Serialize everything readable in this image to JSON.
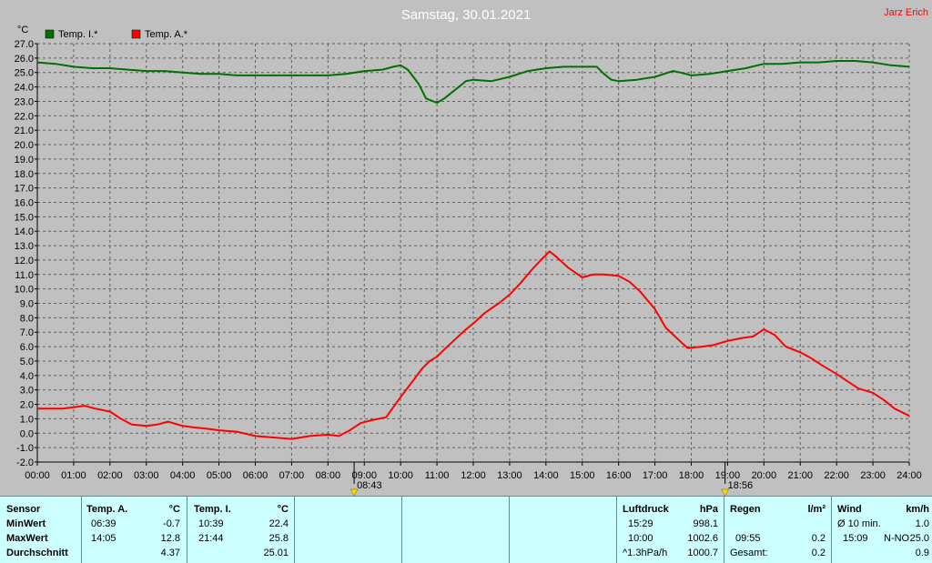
{
  "header": {
    "title": "Samstag, 30.01.2021",
    "author": "Jarz Erich"
  },
  "chart_data": {
    "type": "line",
    "ylabel": "°C",
    "ylim": [
      -2.0,
      27.0
    ],
    "yticks": [
      "-2.0",
      "-1.0",
      "0.0",
      "1.0",
      "2.0",
      "3.0",
      "4.0",
      "5.0",
      "6.0",
      "7.0",
      "8.0",
      "9.0",
      "10.0",
      "11.0",
      "12.0",
      "13.0",
      "14.0",
      "15.0",
      "16.0",
      "17.0",
      "18.0",
      "19.0",
      "20.0",
      "21.0",
      "22.0",
      "23.0",
      "24.0",
      "25.0",
      "26.0",
      "27.0"
    ],
    "xlim": [
      0,
      24
    ],
    "xticks": [
      "00:00",
      "01:00",
      "02:00",
      "03:00",
      "04:00",
      "05:00",
      "06:00",
      "07:00",
      "08:00",
      "09:00",
      "10:00",
      "11:00",
      "12:00",
      "13:00",
      "14:00",
      "15:00",
      "16:00",
      "17:00",
      "18:00",
      "19:00",
      "20:00",
      "21:00",
      "22:00",
      "23:00",
      "24:00"
    ],
    "grid": true,
    "legend": "top-left",
    "markers": [
      {
        "label": "08:43",
        "x": 8.72,
        "icon": "sunrise-icon"
      },
      {
        "label": "18:56",
        "x": 18.93,
        "icon": "sunset-icon"
      }
    ],
    "series": [
      {
        "name": "Temp. I.*",
        "color": "#007000",
        "x": [
          0,
          0.5,
          1,
          1.5,
          2,
          2.5,
          3,
          3.5,
          4,
          4.5,
          5,
          5.5,
          6,
          6.5,
          7,
          7.5,
          8,
          8.5,
          9,
          9.5,
          9.8,
          10,
          10.2,
          10.5,
          10.7,
          11,
          11.2,
          11.5,
          11.8,
          12,
          12.5,
          13,
          13.5,
          14,
          14.5,
          15,
          15.4,
          15.6,
          15.8,
          16,
          16.5,
          17,
          17.5,
          17.7,
          18,
          18.5,
          19,
          19.5,
          20,
          20.5,
          21,
          21.5,
          22,
          22.5,
          23,
          23.5,
          24
        ],
        "y": [
          25.7,
          25.6,
          25.4,
          25.3,
          25.3,
          25.2,
          25.1,
          25.1,
          25.0,
          24.9,
          24.9,
          24.8,
          24.8,
          24.8,
          24.8,
          24.8,
          24.8,
          24.9,
          25.1,
          25.2,
          25.4,
          25.5,
          25.2,
          24.2,
          23.2,
          22.9,
          23.2,
          23.8,
          24.4,
          24.5,
          24.4,
          24.7,
          25.1,
          25.3,
          25.4,
          25.4,
          25.4,
          24.9,
          24.5,
          24.4,
          24.5,
          24.7,
          25.1,
          25.0,
          24.8,
          24.9,
          25.1,
          25.3,
          25.6,
          25.6,
          25.7,
          25.7,
          25.8,
          25.8,
          25.7,
          25.5,
          25.4
        ]
      },
      {
        "name": "Temp. A.*",
        "color": "#ff0000",
        "x": [
          0,
          0.3,
          0.7,
          1.0,
          1.3,
          1.6,
          2.0,
          2.3,
          2.6,
          3.0,
          3.3,
          3.6,
          4.0,
          4.3,
          4.7,
          5.0,
          5.5,
          6.0,
          6.5,
          7.0,
          7.5,
          8.0,
          8.3,
          8.6,
          8.9,
          9.2,
          9.6,
          10.0,
          10.3,
          10.6,
          10.8,
          11.0,
          11.2,
          11.5,
          11.8,
          12.0,
          12.3,
          12.7,
          13.0,
          13.3,
          13.6,
          13.9,
          14.1,
          14.3,
          14.6,
          15.0,
          15.3,
          15.6,
          16.0,
          16.3,
          16.6,
          17.0,
          17.3,
          17.6,
          17.9,
          18.3,
          18.6,
          19.0,
          19.4,
          19.7,
          20.0,
          20.3,
          20.6,
          21.0,
          21.3,
          21.6,
          22.0,
          22.3,
          22.6,
          23.0,
          23.3,
          23.6,
          24.0
        ],
        "y": [
          1.7,
          1.7,
          1.7,
          1.8,
          1.9,
          1.7,
          1.5,
          1.0,
          0.6,
          0.5,
          0.6,
          0.8,
          0.5,
          0.4,
          0.3,
          0.2,
          0.1,
          -0.2,
          -0.3,
          -0.4,
          -0.2,
          -0.1,
          -0.2,
          0.2,
          0.7,
          0.9,
          1.1,
          2.5,
          3.5,
          4.5,
          5.0,
          5.3,
          5.8,
          6.5,
          7.2,
          7.6,
          8.3,
          9.0,
          9.6,
          10.4,
          11.3,
          12.1,
          12.6,
          12.2,
          11.5,
          10.8,
          11.0,
          11.0,
          10.9,
          10.5,
          9.8,
          8.6,
          7.3,
          6.6,
          5.9,
          6.0,
          6.1,
          6.4,
          6.6,
          6.7,
          7.2,
          6.8,
          6.0,
          5.6,
          5.2,
          4.7,
          4.1,
          3.6,
          3.1,
          2.8,
          2.3,
          1.7,
          1.2
        ]
      }
    ]
  },
  "stats": {
    "sensor": {
      "header": "Sensor",
      "rows": [
        "MinWert",
        "MaxWert",
        "Durchschnitt"
      ]
    },
    "temp_a": {
      "header": "Temp. A.",
      "unit": "°C",
      "min_time": "06:39",
      "min": "-0.7",
      "max_time": "14:05",
      "max": "12.8",
      "avg": "4.37"
    },
    "temp_i": {
      "header": "Temp. I.",
      "unit": "°C",
      "min_time": "10:39",
      "min": "22.4",
      "max_time": "21:44",
      "max": "25.8",
      "avg": "25.01"
    },
    "luftdruck": {
      "header": "Luftdruck",
      "unit": "hPa",
      "min_time": "15:29",
      "min": "998.1",
      "max_time": "10:00",
      "max": "1002.6",
      "trend_label": "^1.3hPa/h",
      "trend_value": "1000.7"
    },
    "regen": {
      "header": "Regen",
      "unit": "l/m²",
      "time": "09:55",
      "value": "0.2",
      "total_label": "Gesamt:",
      "total": "0.2"
    },
    "wind": {
      "header": "Wind",
      "unit": "km/h",
      "avg_label": "Ø 10 min.",
      "avg": "1.0",
      "max_time": "15:09",
      "max_dir": "N-NO",
      "max": "25.0",
      "extra": "0.9"
    }
  }
}
